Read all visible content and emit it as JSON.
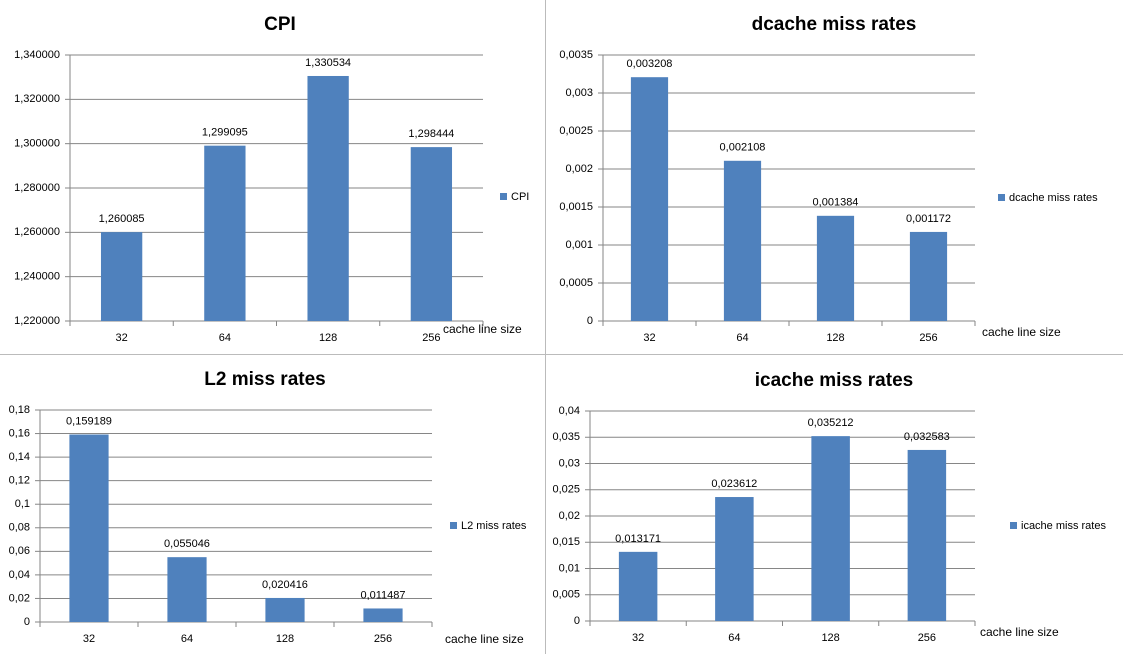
{
  "chart_data": [
    {
      "type": "bar",
      "title": "CPI",
      "x_label": "cache line size",
      "categories": [
        "32",
        "64",
        "128",
        "256"
      ],
      "series": [
        {
          "name": "CPI",
          "color": "#4f81bd",
          "values": [
            1.260085,
            1.299095,
            1.330534,
            1.298444
          ],
          "value_labels": [
            "1,260085",
            "1,299095",
            "1,330534",
            "1,298444"
          ]
        }
      ],
      "ylim": [
        1.22,
        1.34
      ],
      "yticks": [
        {
          "value": 1.22,
          "label": "1,220000"
        },
        {
          "value": 1.24,
          "label": "1,240000"
        },
        {
          "value": 1.26,
          "label": "1,260000"
        },
        {
          "value": 1.28,
          "label": "1,280000"
        },
        {
          "value": 1.3,
          "label": "1,300000"
        },
        {
          "value": 1.32,
          "label": "1,320000"
        },
        {
          "value": 1.34,
          "label": "1,340000"
        }
      ],
      "grid": true,
      "legend": "right"
    },
    {
      "type": "bar",
      "title": "dcache miss rates",
      "x_label": "cache line size",
      "categories": [
        "32",
        "64",
        "128",
        "256"
      ],
      "series": [
        {
          "name": "dcache miss rates",
          "color": "#4f81bd",
          "values": [
            0.003208,
            0.002108,
            0.001384,
            0.001172
          ],
          "value_labels": [
            "0,003208",
            "0,002108",
            "0,001384",
            "0,001172"
          ]
        }
      ],
      "ylim": [
        0,
        0.0035
      ],
      "yticks": [
        0,
        {
          "value": 0.0005,
          "label": "0,0005"
        },
        {
          "value": 0.001,
          "label": "0,001"
        },
        {
          "value": 0.0015,
          "label": "0,0015"
        },
        {
          "value": 0.002,
          "label": "0,002"
        },
        {
          "value": 0.0025,
          "label": "0,0025"
        },
        {
          "value": 0.003,
          "label": "0,003"
        },
        {
          "value": 0.0035,
          "label": "0,0035"
        }
      ],
      "grid": true,
      "legend": "right"
    },
    {
      "type": "bar",
      "title": "L2 miss rates",
      "x_label": "cache line size",
      "categories": [
        "32",
        "64",
        "128",
        "256"
      ],
      "series": [
        {
          "name": "L2 miss rates",
          "color": "#4f81bd",
          "values": [
            0.159189,
            0.055046,
            0.020416,
            0.011487
          ],
          "value_labels": [
            "0,159189",
            "0,055046",
            "0,020416",
            "0,011487"
          ]
        }
      ],
      "ylim": [
        0,
        0.18
      ],
      "yticks": [
        0,
        {
          "value": 0.02,
          "label": "0,02"
        },
        {
          "value": 0.04,
          "label": "0,04"
        },
        {
          "value": 0.06,
          "label": "0,06"
        },
        {
          "value": 0.08,
          "label": "0,08"
        },
        {
          "value": 0.1,
          "label": "0,1"
        },
        {
          "value": 0.12,
          "label": "0,12"
        },
        {
          "value": 0.14,
          "label": "0,14"
        },
        {
          "value": 0.16,
          "label": "0,16"
        },
        {
          "value": 0.18,
          "label": "0,18"
        }
      ],
      "grid": true,
      "legend": "right"
    },
    {
      "type": "bar",
      "title": "icache miss rates",
      "x_label": "cache line size",
      "categories": [
        "32",
        "64",
        "128",
        "256"
      ],
      "series": [
        {
          "name": "icache miss rates",
          "color": "#4f81bd",
          "values": [
            0.013171,
            0.023612,
            0.035212,
            0.032583
          ],
          "value_labels": [
            "0,013171",
            "0,023612",
            "0,035212",
            "0,032583"
          ]
        }
      ],
      "ylim": [
        0,
        0.04
      ],
      "yticks": [
        0,
        {
          "value": 0.005,
          "label": "0,005"
        },
        {
          "value": 0.01,
          "label": "0,01"
        },
        {
          "value": 0.015,
          "label": "0,015"
        },
        {
          "value": 0.02,
          "label": "0,02"
        },
        {
          "value": 0.025,
          "label": "0,025"
        },
        {
          "value": 0.03,
          "label": "0,03"
        },
        {
          "value": 0.035,
          "label": "0,035"
        },
        {
          "value": 0.04,
          "label": "0,04"
        }
      ],
      "grid": true,
      "legend": "right"
    }
  ]
}
